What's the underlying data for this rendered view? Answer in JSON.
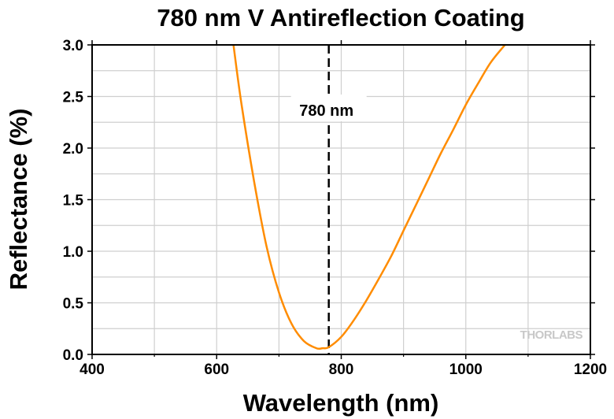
{
  "chart_data": {
    "type": "line",
    "title": "780 nm V Antireflection Coating",
    "xlabel": "Wavelength (nm)",
    "ylabel": "Reflectance (%)",
    "xlim": [
      400,
      1200
    ],
    "ylim": [
      0,
      3.0
    ],
    "x_ticks": [
      400,
      600,
      800,
      1000,
      1200
    ],
    "x_tick_labels": [
      "400",
      "600",
      "800",
      "1000",
      "1200"
    ],
    "y_ticks": [
      0,
      0.5,
      1.0,
      1.5,
      2.0,
      2.5,
      3.0
    ],
    "y_tick_labels": [
      "0.0",
      "0.5",
      "1.0",
      "1.5",
      "2.0",
      "2.5",
      "3.0"
    ],
    "grid": true,
    "series": [
      {
        "color": "#ff8c00",
        "x": [
          627,
          640,
          660,
          680,
          700,
          720,
          740,
          760,
          770,
          780,
          800,
          820,
          840,
          860,
          880,
          900,
          920,
          940,
          960,
          980,
          1000,
          1020,
          1040,
          1060,
          1063
        ],
        "y": [
          3.0,
          2.42,
          1.68,
          1.05,
          0.6,
          0.3,
          0.13,
          0.06,
          0.06,
          0.07,
          0.17,
          0.33,
          0.52,
          0.73,
          0.95,
          1.2,
          1.45,
          1.7,
          1.95,
          2.18,
          2.42,
          2.63,
          2.83,
          2.98,
          3.0
        ]
      }
    ],
    "annotations": [
      {
        "type": "vline",
        "x": 780,
        "style": "dashed",
        "color": "#000000",
        "label": "780 nm"
      }
    ]
  },
  "watermark": "THORLABS"
}
